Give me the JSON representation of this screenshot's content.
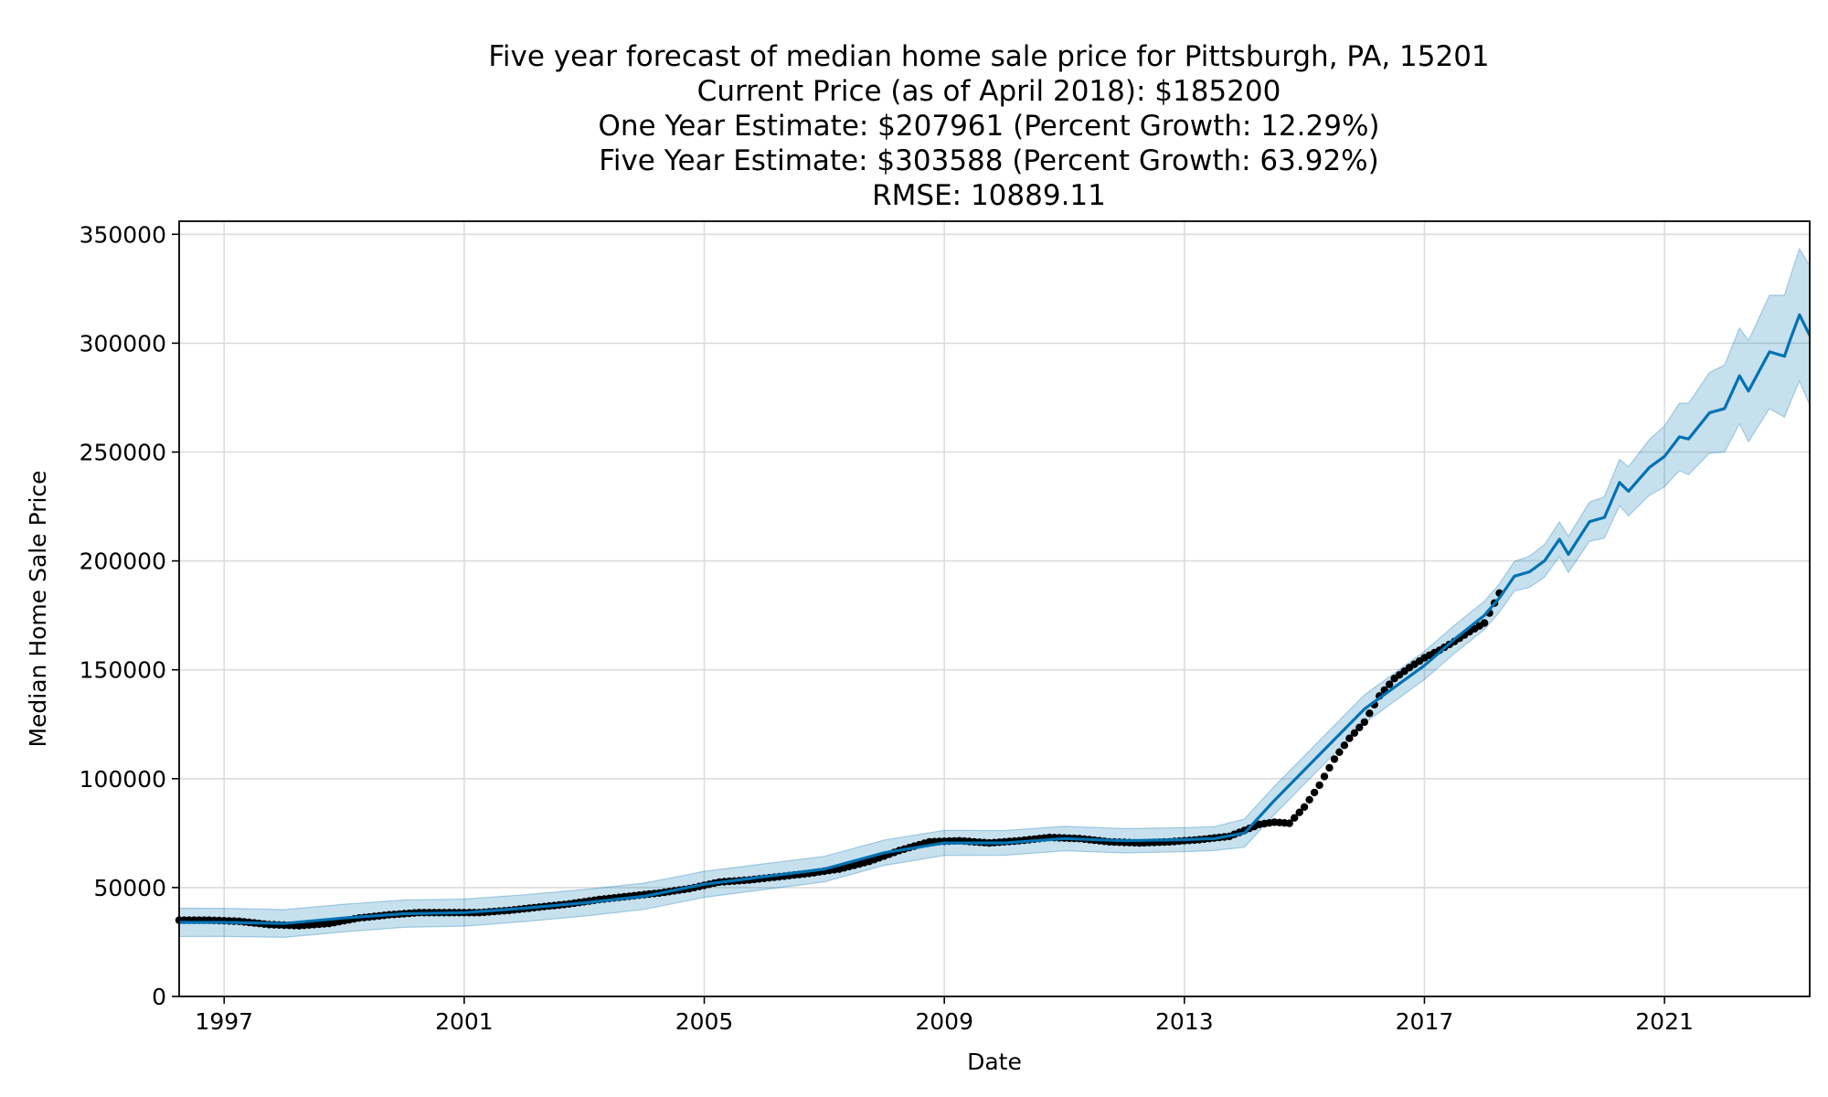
{
  "chart_data": {
    "type": "line",
    "title_lines": [
      "Five year forecast of median home sale price for Pittsburgh, PA, 15201",
      "Current Price (as of April 2018): $185200",
      "One Year Estimate: $207961 (Percent Growth: 12.29%)",
      "Five Year Estimate: $303588 (Percent Growth: 63.92%)",
      "RMSE: 10889.11"
    ],
    "xlabel": "Date",
    "ylabel": "Median Home Sale Price",
    "xlim": [
      1996.25,
      2023.42
    ],
    "ylim": [
      0,
      356000
    ],
    "x_ticks": [
      {
        "value": 1997,
        "label": "1997"
      },
      {
        "value": 2001,
        "label": "2001"
      },
      {
        "value": 2005,
        "label": "2005"
      },
      {
        "value": 2009,
        "label": "2009"
      },
      {
        "value": 2013,
        "label": "2013"
      },
      {
        "value": 2017,
        "label": "2017"
      },
      {
        "value": 2021,
        "label": "2021"
      }
    ],
    "y_ticks": [
      {
        "value": 0,
        "label": "0"
      },
      {
        "value": 50000,
        "label": "50000"
      },
      {
        "value": 100000,
        "label": "100000"
      },
      {
        "value": 150000,
        "label": "150000"
      },
      {
        "value": 200000,
        "label": "200000"
      },
      {
        "value": 250000,
        "label": "250000"
      },
      {
        "value": 300000,
        "label": "300000"
      },
      {
        "value": 350000,
        "label": "350000"
      }
    ],
    "grid": true,
    "colors": {
      "forecast": "#0072b2",
      "interval": "#0072b2",
      "observed": "#000000"
    },
    "observed": {
      "x": [
        1996.25,
        1996.75,
        1997.25,
        1997.75,
        1998.25,
        1998.75,
        1999.25,
        1999.75,
        2000.25,
        2000.75,
        2001.25,
        2001.75,
        2002.25,
        2002.75,
        2003.25,
        2003.75,
        2004.25,
        2004.75,
        2005.25,
        2005.75,
        2006.25,
        2006.75,
        2007.25,
        2007.75,
        2008.25,
        2008.75,
        2009.25,
        2009.75,
        2010.25,
        2010.75,
        2011.25,
        2011.75,
        2012.25,
        2012.75,
        2013.25,
        2013.75,
        2014.25,
        2014.5,
        2014.75,
        2015,
        2015.25,
        2015.5,
        2015.75,
        2016,
        2016.25,
        2016.5,
        2016.75,
        2017,
        2017.25,
        2017.5,
        2017.75,
        2018,
        2018.25
      ],
      "y": [
        35000,
        35000,
        34500,
        33000,
        32500,
        33500,
        36000,
        37500,
        38500,
        38500,
        38500,
        39500,
        41000,
        42500,
        44500,
        46000,
        47500,
        49500,
        52500,
        53500,
        55000,
        56500,
        58500,
        62000,
        67000,
        71000,
        71500,
        70500,
        71500,
        73000,
        72500,
        71000,
        70500,
        71000,
        72000,
        73500,
        79000,
        80000,
        79500,
        87000,
        97000,
        109000,
        118500,
        126000,
        138000,
        146000,
        151000,
        155500,
        159000,
        163000,
        167500,
        171500,
        185200
      ]
    },
    "forecast": {
      "x": [
        1996.25,
        1997,
        1998,
        1999,
        2000,
        2001,
        2002,
        2003,
        2004,
        2005,
        2006,
        2007,
        2008,
        2009,
        2010,
        2011,
        2012,
        2013,
        2013.5,
        2014,
        2014.5,
        2015,
        2015.5,
        2016,
        2016.5,
        2017,
        2017.5,
        2018,
        2018.25,
        2018.5,
        2018.75,
        2019,
        2019.25,
        2019.4,
        2019.75,
        2020,
        2020.25,
        2020.4,
        2020.75,
        2021,
        2021.25,
        2021.4,
        2021.75,
        2022,
        2022.25,
        2022.4,
        2022.75,
        2023,
        2023.1,
        2023.25,
        2023.42
      ],
      "y": [
        34000,
        34000,
        33500,
        36000,
        38000,
        38500,
        40500,
        43000,
        46000,
        51500,
        55000,
        58500,
        66000,
        70500,
        70500,
        72500,
        71500,
        72000,
        72500,
        75000,
        90000,
        104000,
        118000,
        132000,
        142000,
        152000,
        164000,
        175000,
        183000,
        193000,
        195000,
        200000,
        210000,
        203000,
        218000,
        220000,
        236000,
        232000,
        243000,
        248000,
        257000,
        256000,
        268000,
        270000,
        285000,
        278000,
        296000,
        294000,
        302000,
        313000,
        303588
      ]
    },
    "interval_width": [
      [
        1996.25,
        6500
      ],
      [
        2013.5,
        5500
      ],
      [
        2014,
        6500
      ],
      [
        2018.25,
        6500
      ],
      [
        2019,
        7500
      ],
      [
        2020,
        9500
      ],
      [
        2021,
        14000
      ],
      [
        2022,
        20000
      ],
      [
        2023,
        28000
      ],
      [
        2023.42,
        32000
      ]
    ]
  }
}
